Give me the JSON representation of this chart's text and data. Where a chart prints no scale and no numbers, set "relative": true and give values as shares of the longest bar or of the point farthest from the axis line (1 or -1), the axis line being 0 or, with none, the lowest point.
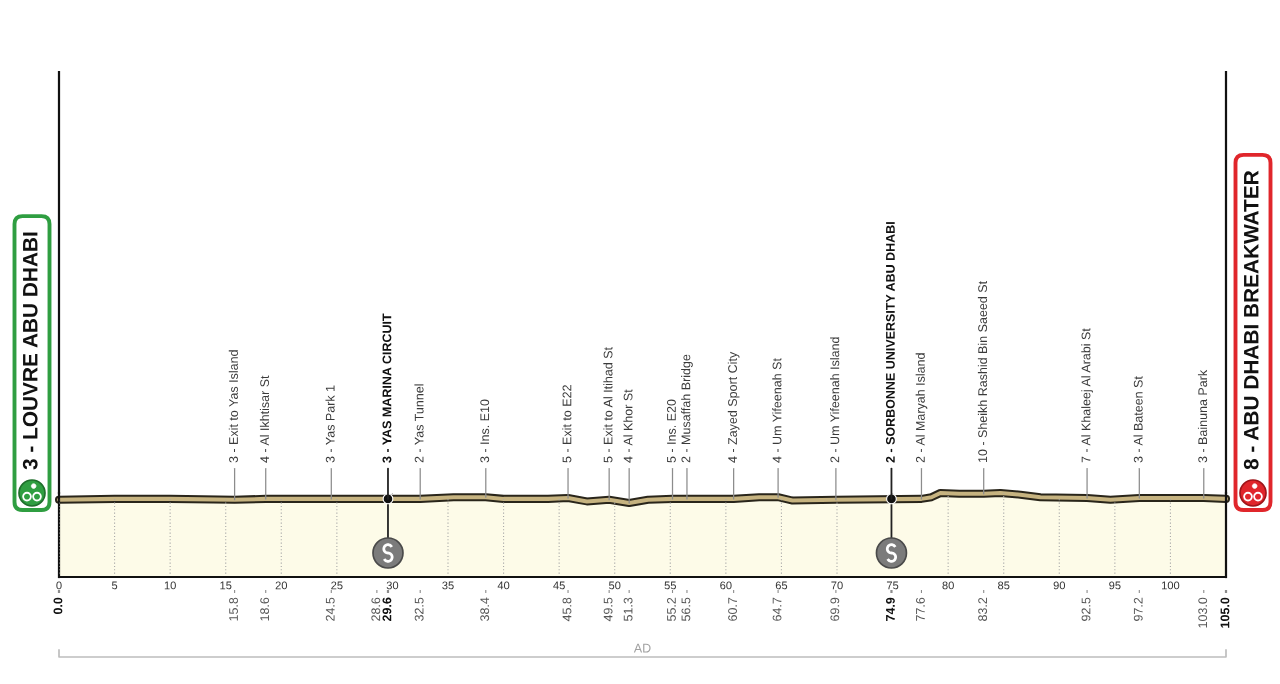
{
  "chart_data": {
    "type": "area",
    "relative": true,
    "color": "#fdfbe8",
    "x": [
      0,
      5,
      10,
      15.8,
      18.6,
      24.5,
      32.5,
      35.5,
      38.4,
      40,
      44,
      45.8,
      47.5,
      49.5,
      51.3,
      53,
      55.2,
      56.5,
      60.7,
      63,
      64.7,
      66,
      69.9,
      77.6,
      78.5,
      79.3,
      81,
      83.2,
      84.7,
      86.5,
      88.3,
      92.5,
      94.6,
      97.2,
      100,
      103,
      105
    ],
    "values": [
      0.92,
      0.93,
      0.93,
      0.92,
      0.93,
      0.93,
      0.93,
      0.95,
      0.95,
      0.93,
      0.93,
      0.94,
      0.9,
      0.92,
      0.88,
      0.92,
      0.93,
      0.93,
      0.93,
      0.95,
      0.95,
      0.91,
      0.92,
      0.93,
      0.95,
      1.0,
      0.99,
      0.99,
      1.0,
      0.98,
      0.95,
      0.94,
      0.92,
      0.94,
      0.94,
      0.94,
      0.93
    ],
    "xlim": [
      0,
      105
    ],
    "xticks": [
      0,
      5,
      10,
      15,
      20,
      25,
      30,
      35,
      40,
      45,
      50,
      55,
      60,
      65,
      70,
      75,
      80,
      85,
      90,
      95,
      100
    ],
    "x2lim": [
      0,
      105
    ],
    "x2ticks": [
      {
        "value": 0,
        "label": "0.0"
      },
      15.8,
      18.6,
      24.5,
      28.6,
      29.6,
      32.5,
      38.4,
      45.8,
      49.5,
      51.3,
      55.2,
      56.5,
      60.7,
      64.7,
      69.9,
      74.9,
      77.6,
      83.2,
      92.5,
      97.2,
      {
        "value": 103,
        "label": "103.0"
      },
      {
        "value": 105,
        "label": "105.0"
      }
    ],
    "grid": "x",
    "annotations": [
      {
        "text": "3 - LOUVRE ABU DHABI",
        "x": 0,
        "y": 0.92
      },
      {
        "text": "3 - Exit to Yas Island",
        "x": 15.8,
        "y": 0.92
      },
      {
        "text": "4 - Al Ikhtisar St",
        "x": 18.6,
        "y": 0.93
      },
      {
        "text": "3 - Yas Park 1",
        "x": 24.5,
        "y": 0.93
      },
      {
        "text": "3 - YAS MARINA CIRCUIT",
        "x": 29.6,
        "y": 0.93
      },
      {
        "text": "2 - Yas Tunnel",
        "x": 32.5,
        "y": 0.93
      },
      {
        "text": "3 - Ins. E10",
        "x": 38.4,
        "y": 0.95
      },
      {
        "text": "5 - Exit to E22",
        "x": 45.8,
        "y": 0.94
      },
      {
        "text": "5 - Exit to Al Itihad St",
        "x": 49.5,
        "y": 0.92
      },
      {
        "text": "4 - Al Khor St",
        "x": 51.3,
        "y": 0.88
      },
      {
        "text": "5 - Ins. E20",
        "x": 55.2,
        "y": 0.93
      },
      {
        "text": "2 - Musaffah Bridge",
        "x": 56.5,
        "y": 0.93
      },
      {
        "text": "4 - Zayed Sport City",
        "x": 60.7,
        "y": 0.93
      },
      {
        "text": "4 - Um Yifeenah St",
        "x": 64.7,
        "y": 0.95
      },
      {
        "text": "2 - Um Yifeenah Island",
        "x": 69.9,
        "y": 0.92
      },
      {
        "text": "2 - SORBONNE UNIVERSITY ABU DHABI",
        "x": 74.9,
        "y": 0.93
      },
      {
        "text": "2 - Al Maryah Island",
        "x": 77.6,
        "y": 0.93
      },
      {
        "text": "10 - Sheikh Rashid Bin Saeed St",
        "x": 83.2,
        "y": 0.99
      },
      {
        "text": "7 - Al Khaleej Al Arabi St",
        "x": 92.5,
        "y": 0.94
      },
      {
        "text": "3 - Al Bateen St",
        "x": 97.2,
        "y": 0.94
      },
      {
        "text": "3 - Bainuna Park",
        "x": 103,
        "y": 0.94
      },
      {
        "text": "8 - ABU DHABI BREAKWATER",
        "x": 105,
        "y": 0.93
      },
      "AD"
    ]
  }
}
